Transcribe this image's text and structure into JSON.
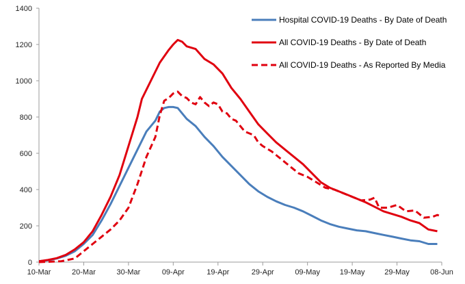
{
  "chart_data": {
    "type": "line",
    "title": "",
    "xlabel": "",
    "ylabel": "",
    "ylim": [
      0,
      1400
    ],
    "yticks": [
      0,
      200,
      400,
      600,
      800,
      1000,
      1200,
      1400
    ],
    "yticks_labels": [
      "0",
      "200",
      "400",
      "600",
      "800",
      "1000",
      "1200",
      "1400"
    ],
    "xlim_day": [
      0,
      90
    ],
    "xticks": [
      {
        "day": 0,
        "label": "10-Mar"
      },
      {
        "day": 10,
        "label": "20-Mar"
      },
      {
        "day": 20,
        "label": "30-Mar"
      },
      {
        "day": 30,
        "label": "09-Apr"
      },
      {
        "day": 40,
        "label": "19-Apr"
      },
      {
        "day": 50,
        "label": "29-Apr"
      },
      {
        "day": 60,
        "label": "09-May"
      },
      {
        "day": 70,
        "label": "19-May"
      },
      {
        "day": 80,
        "label": "29-May"
      },
      {
        "day": 90,
        "label": "08-Jun"
      }
    ],
    "grid": false,
    "legend_position": "top-right",
    "series": [
      {
        "name": "Hospital COVID-19 Deaths - By Date of Death",
        "color": "#4a7ebb",
        "style": "solid",
        "points": [
          [
            0,
            5
          ],
          [
            2,
            10
          ],
          [
            4,
            20
          ],
          [
            6,
            35
          ],
          [
            8,
            60
          ],
          [
            10,
            100
          ],
          [
            12,
            150
          ],
          [
            14,
            230
          ],
          [
            16,
            320
          ],
          [
            18,
            420
          ],
          [
            20,
            520
          ],
          [
            22,
            620
          ],
          [
            24,
            720
          ],
          [
            26,
            780
          ],
          [
            27,
            830
          ],
          [
            28,
            850
          ],
          [
            29,
            855
          ],
          [
            30,
            855
          ],
          [
            31,
            850
          ],
          [
            32,
            820
          ],
          [
            33,
            790
          ],
          [
            35,
            750
          ],
          [
            37,
            690
          ],
          [
            39,
            640
          ],
          [
            41,
            580
          ],
          [
            43,
            530
          ],
          [
            45,
            480
          ],
          [
            47,
            430
          ],
          [
            49,
            390
          ],
          [
            51,
            360
          ],
          [
            53,
            335
          ],
          [
            55,
            315
          ],
          [
            57,
            300
          ],
          [
            59,
            280
          ],
          [
            61,
            255
          ],
          [
            63,
            230
          ],
          [
            65,
            210
          ],
          [
            67,
            195
          ],
          [
            69,
            185
          ],
          [
            71,
            175
          ],
          [
            73,
            170
          ],
          [
            75,
            160
          ],
          [
            77,
            150
          ],
          [
            79,
            140
          ],
          [
            81,
            130
          ],
          [
            83,
            120
          ],
          [
            85,
            115
          ],
          [
            87,
            100
          ],
          [
            89,
            100
          ]
        ]
      },
      {
        "name": "All COVID-19 Deaths - By Date of Death",
        "color": "#e0000f",
        "style": "solid",
        "points": [
          [
            0,
            5
          ],
          [
            2,
            12
          ],
          [
            4,
            22
          ],
          [
            6,
            40
          ],
          [
            8,
            70
          ],
          [
            10,
            110
          ],
          [
            12,
            170
          ],
          [
            14,
            260
          ],
          [
            16,
            360
          ],
          [
            18,
            480
          ],
          [
            20,
            640
          ],
          [
            22,
            800
          ],
          [
            23,
            900
          ],
          [
            25,
            1000
          ],
          [
            27,
            1100
          ],
          [
            29,
            1170
          ],
          [
            30,
            1200
          ],
          [
            31,
            1225
          ],
          [
            32,
            1215
          ],
          [
            33,
            1190
          ],
          [
            35,
            1175
          ],
          [
            37,
            1120
          ],
          [
            39,
            1090
          ],
          [
            41,
            1040
          ],
          [
            43,
            960
          ],
          [
            45,
            900
          ],
          [
            47,
            830
          ],
          [
            49,
            760
          ],
          [
            51,
            710
          ],
          [
            53,
            660
          ],
          [
            55,
            620
          ],
          [
            57,
            580
          ],
          [
            59,
            540
          ],
          [
            61,
            490
          ],
          [
            63,
            440
          ],
          [
            65,
            410
          ],
          [
            67,
            390
          ],
          [
            69,
            370
          ],
          [
            71,
            350
          ],
          [
            73,
            330
          ],
          [
            75,
            305
          ],
          [
            77,
            280
          ],
          [
            79,
            265
          ],
          [
            81,
            250
          ],
          [
            83,
            230
          ],
          [
            85,
            215
          ],
          [
            87,
            180
          ],
          [
            89,
            170
          ]
        ]
      },
      {
        "name": "All COVID-19 Deaths - As Reported By Media",
        "color": "#e0000f",
        "style": "dashed",
        "points": [
          [
            0,
            0
          ],
          [
            5,
            5
          ],
          [
            8,
            20
          ],
          [
            10,
            60
          ],
          [
            12,
            100
          ],
          [
            14,
            140
          ],
          [
            16,
            180
          ],
          [
            18,
            230
          ],
          [
            20,
            300
          ],
          [
            22,
            430
          ],
          [
            24,
            580
          ],
          [
            26,
            690
          ],
          [
            27,
            810
          ],
          [
            28,
            890
          ],
          [
            29,
            905
          ],
          [
            30,
            930
          ],
          [
            31,
            940
          ],
          [
            32,
            915
          ],
          [
            33,
            905
          ],
          [
            34,
            880
          ],
          [
            35,
            870
          ],
          [
            36,
            910
          ],
          [
            37,
            880
          ],
          [
            38,
            860
          ],
          [
            39,
            880
          ],
          [
            40,
            870
          ],
          [
            41,
            830
          ],
          [
            42,
            820
          ],
          [
            43,
            790
          ],
          [
            44,
            780
          ],
          [
            45,
            750
          ],
          [
            46,
            720
          ],
          [
            47,
            710
          ],
          [
            48,
            700
          ],
          [
            49,
            660
          ],
          [
            50,
            640
          ],
          [
            52,
            610
          ],
          [
            54,
            570
          ],
          [
            56,
            530
          ],
          [
            58,
            490
          ],
          [
            60,
            470
          ],
          [
            62,
            440
          ],
          [
            64,
            410
          ],
          [
            66,
            400
          ],
          [
            68,
            380
          ],
          [
            70,
            360
          ],
          [
            72,
            340
          ],
          [
            74,
            345
          ],
          [
            75,
            355
          ],
          [
            76,
            300
          ],
          [
            78,
            300
          ],
          [
            80,
            315
          ],
          [
            82,
            280
          ],
          [
            84,
            285
          ],
          [
            86,
            245
          ],
          [
            88,
            250
          ],
          [
            89,
            260
          ],
          [
            90,
            250
          ]
        ]
      }
    ]
  }
}
